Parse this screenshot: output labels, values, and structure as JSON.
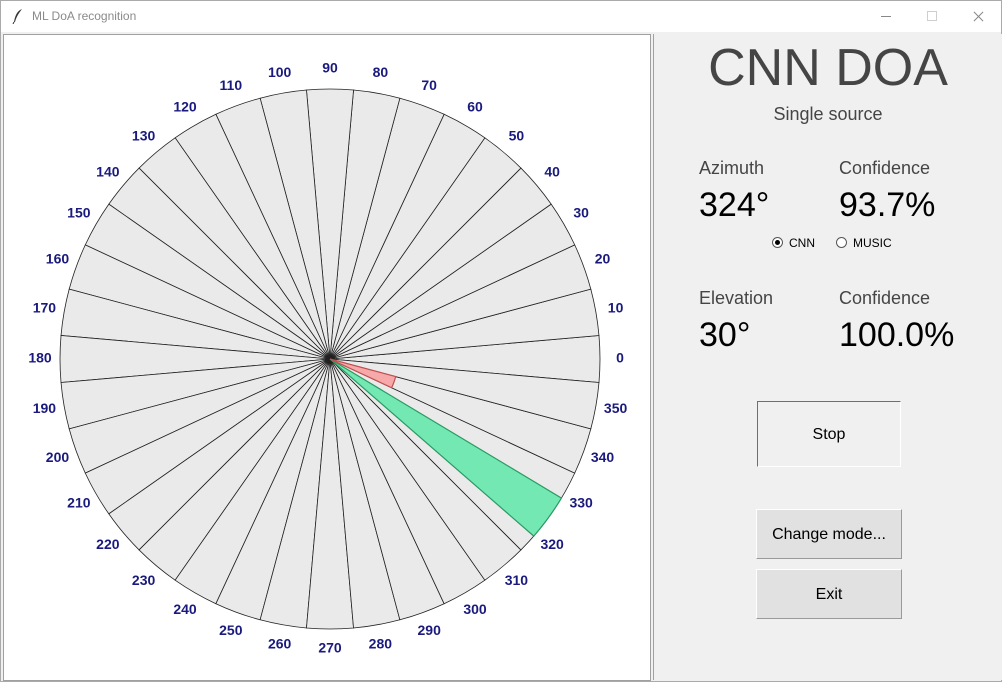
{
  "window": {
    "title": "ML DoA recognition"
  },
  "polar": {
    "angle_labels": [
      "0",
      "10",
      "20",
      "30",
      "40",
      "50",
      "60",
      "70",
      "80",
      "90",
      "100",
      "110",
      "120",
      "130",
      "140",
      "150",
      "160",
      "170",
      "180",
      "190",
      "200",
      "210",
      "220",
      "230",
      "240",
      "250",
      "260",
      "270",
      "280",
      "290",
      "300",
      "310",
      "320",
      "330",
      "340",
      "350"
    ],
    "highlight_music_angle": 340,
    "highlight_cnn_angle": 324,
    "colors": {
      "sector_fill": "#ebeaea",
      "music": "#f7a8a8",
      "cnn": "#73e8b2",
      "label": "#1a1a7e"
    }
  },
  "panel": {
    "title": "CNN DOA",
    "subtitle": "Single source",
    "azimuth_label": "Azimuth",
    "azimuth_value": "324°",
    "az_conf_label": "Confidence",
    "az_conf_value": "93.7%",
    "radio_cnn": "CNN",
    "radio_music": "MUSIC",
    "elevation_label": "Elevation",
    "elevation_value": "30°",
    "el_conf_label": "Confidence",
    "el_conf_value": "100.0%",
    "stop_label": "Stop",
    "change_mode_label": "Change mode...",
    "exit_label": "Exit"
  }
}
